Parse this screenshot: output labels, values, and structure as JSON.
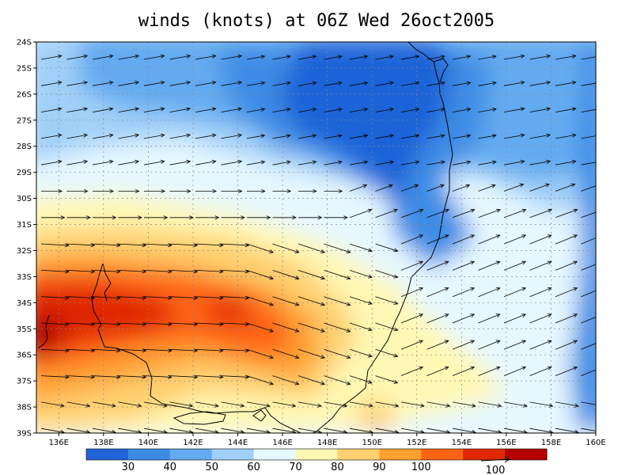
{
  "title": "winds (knots) at 06Z Wed 26oct2005",
  "map": {
    "lat_labels": [
      "24S",
      "25S",
      "26S",
      "27S",
      "28S",
      "29S",
      "30S",
      "31S",
      "32S",
      "33S",
      "34S",
      "35S",
      "36S",
      "37S",
      "38S",
      "39S"
    ],
    "lon_labels": [
      "136E",
      "138E",
      "140E",
      "142E",
      "144E",
      "146E",
      "148E",
      "150E",
      "152E",
      "154E",
      "156E",
      "158E",
      "160E"
    ],
    "lon_range": [
      135,
      160
    ],
    "lat_range": [
      -24,
      -39
    ],
    "grid": "dashed"
  },
  "colorbar": {
    "levels": [
      "30",
      "40",
      "50",
      "60",
      "70",
      "80",
      "90",
      "100"
    ],
    "colors": [
      "#1e64d8",
      "#3c8ce6",
      "#64aaf0",
      "#a0d0f8",
      "#e6f8ff",
      "#fff8b4",
      "#ffd070",
      "#ffa030",
      "#ff6414",
      "#e02800",
      "#b40000"
    ]
  },
  "reference_vector": {
    "label": "100"
  }
}
